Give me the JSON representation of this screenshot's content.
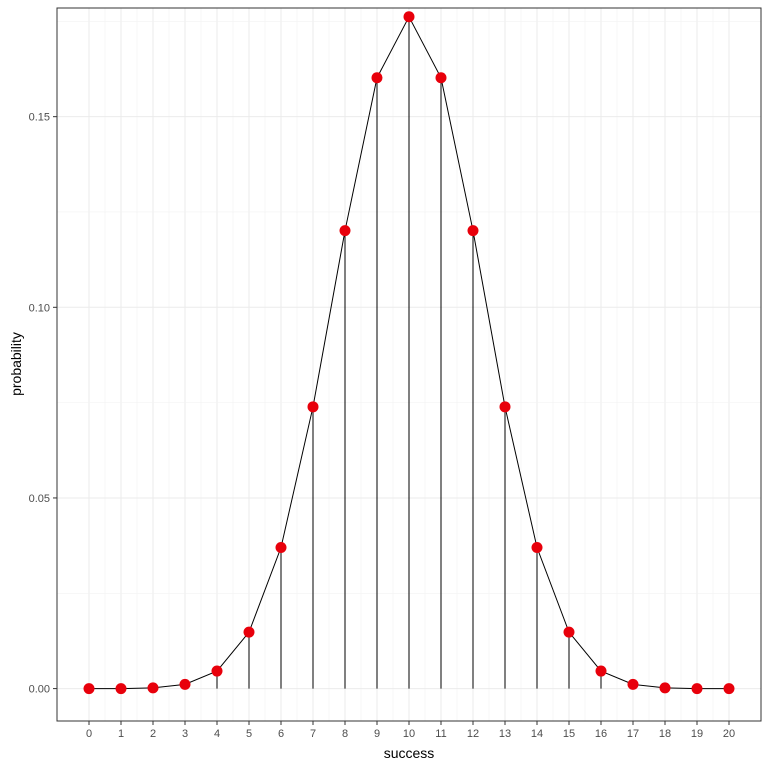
{
  "chart_data": {
    "type": "line",
    "xlabel": "success",
    "ylabel": "probability",
    "xlim": [
      -1,
      21
    ],
    "ylim": [
      -0.0085,
      0.1785
    ],
    "x_ticks": [
      0,
      1,
      2,
      3,
      4,
      5,
      6,
      7,
      8,
      9,
      10,
      11,
      12,
      13,
      14,
      15,
      16,
      17,
      18,
      19,
      20
    ],
    "y_ticks": [
      0.0,
      0.05,
      0.1,
      0.15
    ],
    "y_tick_labels": [
      "0.00",
      "0.05",
      "0.10",
      "0.15"
    ],
    "grid": true,
    "series": [
      {
        "x": [
          0,
          1,
          2,
          3,
          4,
          5,
          6,
          7,
          8,
          9,
          10,
          11,
          12,
          13,
          14,
          15,
          16,
          17,
          18,
          19,
          20
        ],
        "values": [
          0.0,
          0.0,
          0.0002,
          0.0011,
          0.0046,
          0.0148,
          0.037,
          0.0739,
          0.1201,
          0.1602,
          0.1762,
          0.1602,
          0.1201,
          0.0739,
          0.037,
          0.0148,
          0.0046,
          0.0011,
          0.0002,
          0.0,
          0.0
        ],
        "color": "#e8000b",
        "line_color": "#000000",
        "drop_lines": true
      }
    ]
  }
}
